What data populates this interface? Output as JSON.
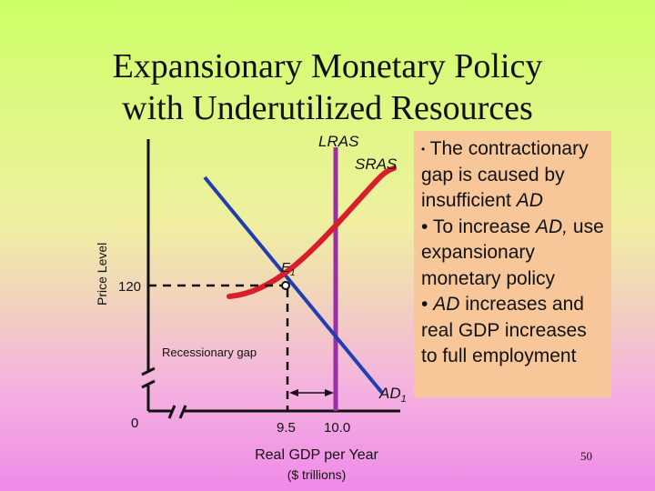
{
  "title": {
    "line1": "Expansionary Monetary Policy",
    "line2": "with Underutilized Resources"
  },
  "diagram": {
    "y_axis_label": "Price Level",
    "lras_label": "LRAS",
    "sras_label": "SRAS",
    "ad_label": "AD",
    "ad_subscript": "1",
    "e_label": "E",
    "e_subscript": "1",
    "price_value": "120",
    "origin_label": "0",
    "gdp_current": "9.5",
    "gdp_full": "10.0",
    "gap_label": "Recessionary gap",
    "x_axis_label_line1": "Real GDP per Year",
    "x_axis_label_line2": "($ trillions)",
    "colors": {
      "lras": "#9b2fa8",
      "sras": "#d81e2a",
      "ad": "#1f3fb0",
      "axis": "#111111"
    }
  },
  "textbox": {
    "bullet1_text": "The contractionary gap is caused by insufficient",
    "bullet1_ad": "AD",
    "bullet2_pre": "To increase",
    "bullet2_ad": "AD,",
    "bullet2_text": "use  expansionary monetary policy",
    "bullet3_ad": "AD",
    "bullet3_text": "increases and real GDP increases to full employment"
  },
  "page_number": "50"
}
